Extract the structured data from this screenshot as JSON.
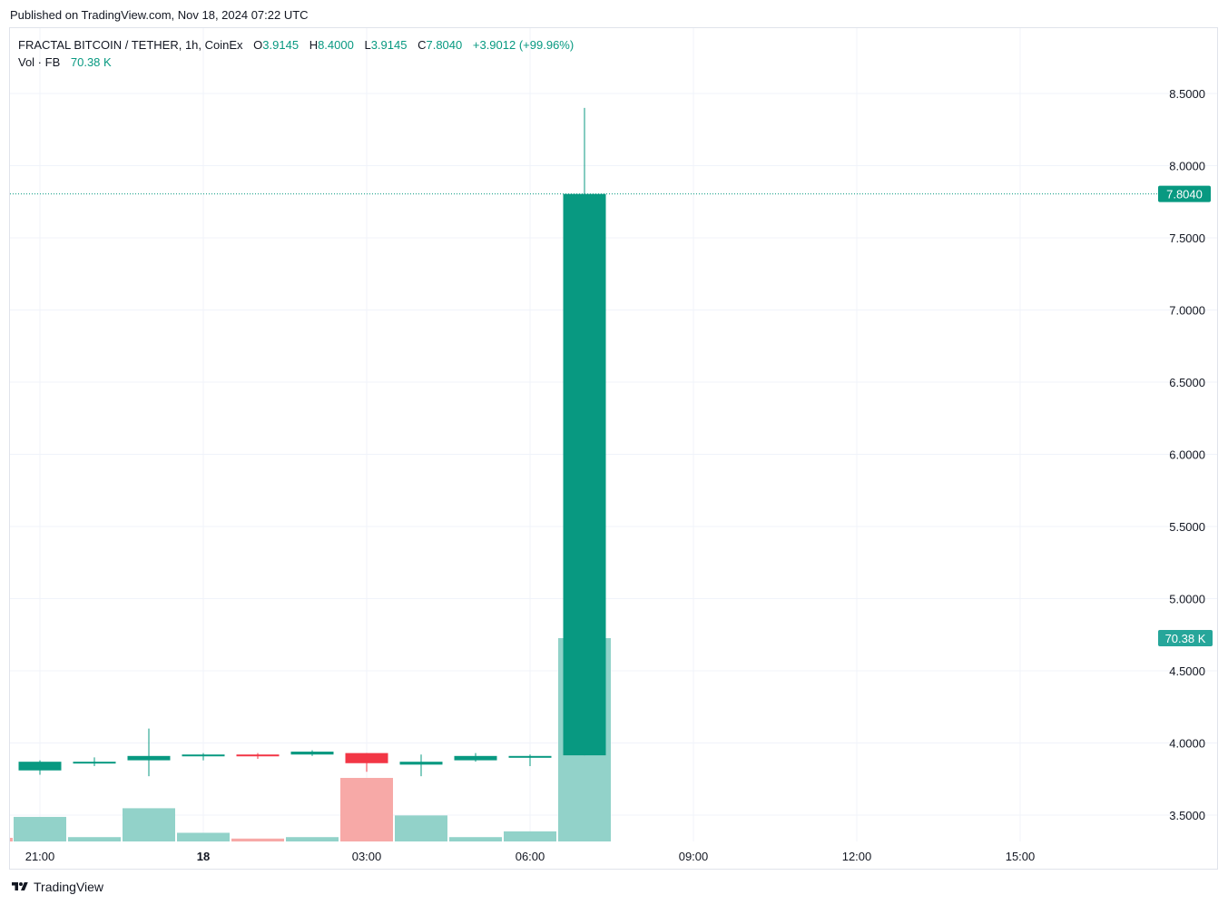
{
  "header": {
    "published_text": "Published on TradingView.com, Nov 18, 2024 07:22 UTC"
  },
  "legend": {
    "symbol": "FRACTAL BITCOIN / TETHER, 1h, CoinEx",
    "open_label": "O",
    "open_value": "3.9145",
    "high_label": "H",
    "high_value": "8.4000",
    "low_label": "L",
    "low_value": "3.9145",
    "close_label": "C",
    "close_value": "7.8040",
    "change": "+3.9012 (+99.96%)",
    "volume_label": "Vol · FB",
    "volume_value": "70.38 K"
  },
  "colors": {
    "up": "#089981",
    "down": "#f23645",
    "volume_up": "#92d2c9",
    "volume_down": "#f7a9a7",
    "grid": "#f0f3fa",
    "axis_text": "#131722"
  },
  "chart_data": {
    "type": "candlestick",
    "interval": "1h",
    "ylim": [
      3.35,
      8.8
    ],
    "y_ticks": [
      "3.5000",
      "4.0000",
      "4.5000",
      "5.0000",
      "5.5000",
      "6.0000",
      "6.5000",
      "7.0000",
      "7.5000",
      "8.0000",
      "8.5000"
    ],
    "x_ticks": [
      {
        "label": "21:00",
        "bar": 0,
        "bold": false
      },
      {
        "label": "18",
        "bar": 3,
        "bold": true
      },
      {
        "label": "03:00",
        "bar": 6,
        "bold": false
      },
      {
        "label": "06:00",
        "bar": 9,
        "bold": false
      },
      {
        "label": "09:00",
        "bar": 12,
        "bold": false
      },
      {
        "label": "12:00",
        "bar": 15,
        "bold": false
      },
      {
        "label": "15:00",
        "bar": 18,
        "bold": false
      }
    ],
    "candles": [
      {
        "o": 3.81,
        "h": 3.88,
        "l": 3.78,
        "c": 3.87,
        "v": 8.5
      },
      {
        "o": 3.87,
        "h": 3.9,
        "l": 3.84,
        "c": 3.87,
        "v": 1.5
      },
      {
        "o": 3.88,
        "h": 4.1,
        "l": 3.77,
        "c": 3.91,
        "v": 11.5
      },
      {
        "o": 3.91,
        "h": 3.93,
        "l": 3.88,
        "c": 3.92,
        "v": 3.0
      },
      {
        "o": 3.92,
        "h": 3.93,
        "l": 3.89,
        "c": 3.91,
        "v": 1.0
      },
      {
        "o": 3.92,
        "h": 3.95,
        "l": 3.91,
        "c": 3.94,
        "v": 1.5
      },
      {
        "o": 3.93,
        "h": 3.93,
        "l": 3.8,
        "c": 3.86,
        "v": 22.0
      },
      {
        "o": 3.85,
        "h": 3.92,
        "l": 3.77,
        "c": 3.87,
        "v": 9.0
      },
      {
        "o": 3.88,
        "h": 3.93,
        "l": 3.87,
        "c": 3.91,
        "v": 1.5
      },
      {
        "o": 3.91,
        "h": 3.92,
        "l": 3.84,
        "c": 3.91,
        "v": 3.5
      },
      {
        "o": 3.9145,
        "h": 8.4,
        "l": 3.9145,
        "c": 7.804,
        "v": 70.38
      }
    ],
    "last_price_label": "7.8040",
    "last_volume_label": "70.38 K",
    "volume_max_display": 70.38
  },
  "footer": {
    "brand": "TradingView"
  }
}
